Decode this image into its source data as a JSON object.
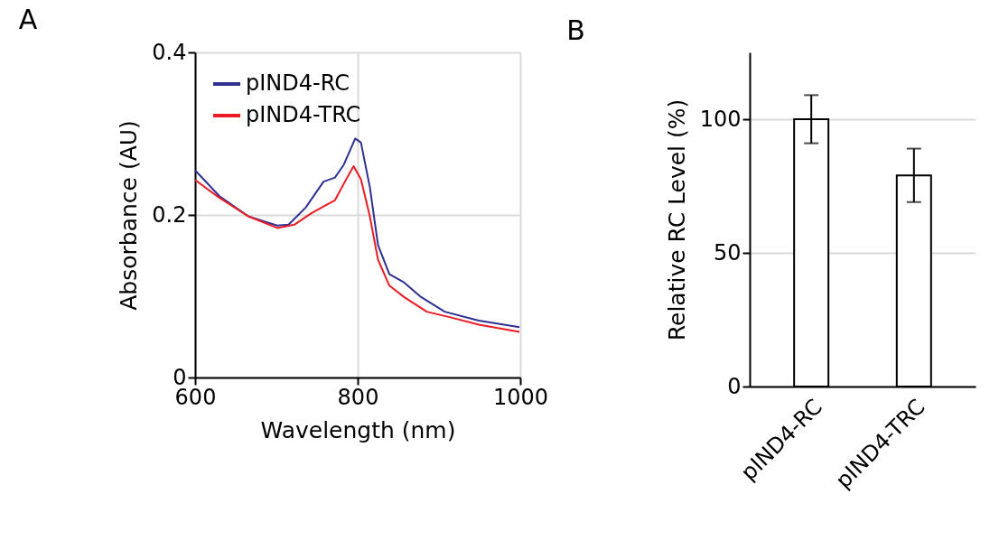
{
  "chart_data": [
    {
      "type": "line",
      "xlabel": "Wavelength (nm)",
      "ylabel": "Absorbance (AU)",
      "xlim": [
        600,
        1000
      ],
      "xticks": [
        600,
        800,
        1000
      ],
      "ylim": [
        0,
        0.4
      ],
      "yticks": [
        0,
        0.2,
        0.4
      ],
      "grid": true,
      "legend": "top left",
      "annotations": [
        "A"
      ],
      "series": [
        {
          "name": "pIND4-RC",
          "color": "#2e3192",
          "x": [
            600,
            630,
            666,
            701,
            715,
            736,
            758,
            772,
            783,
            797,
            804,
            815,
            825,
            839,
            857,
            878,
            907,
            949,
            999
          ],
          "values": [
            0.255,
            0.223,
            0.198,
            0.187,
            0.188,
            0.209,
            0.241,
            0.246,
            0.262,
            0.294,
            0.289,
            0.234,
            0.163,
            0.127,
            0.117,
            0.099,
            0.081,
            0.07,
            0.062
          ]
        },
        {
          "name": "pIND4-TRC",
          "color": "#ed1c24",
          "x": [
            600,
            630,
            666,
            701,
            722,
            743,
            761,
            772,
            786,
            795,
            804,
            815,
            825,
            839,
            857,
            885,
            914,
            949,
            999
          ],
          "values": [
            0.243,
            0.221,
            0.198,
            0.184,
            0.188,
            0.202,
            0.212,
            0.218,
            0.244,
            0.26,
            0.244,
            0.198,
            0.145,
            0.113,
            0.099,
            0.081,
            0.074,
            0.065,
            0.056
          ]
        }
      ]
    },
    {
      "type": "bar",
      "ylabel": "Relative RC Level (%)",
      "categories": [
        "pIND4-RC",
        "pIND4-TRC"
      ],
      "values": [
        100,
        79
      ],
      "errors": [
        9,
        10
      ],
      "color": "#ffffff",
      "ylim": [
        0,
        125
      ],
      "yticks": [
        0,
        50,
        100
      ],
      "grid": "y",
      "annotations": [
        "B"
      ]
    }
  ]
}
